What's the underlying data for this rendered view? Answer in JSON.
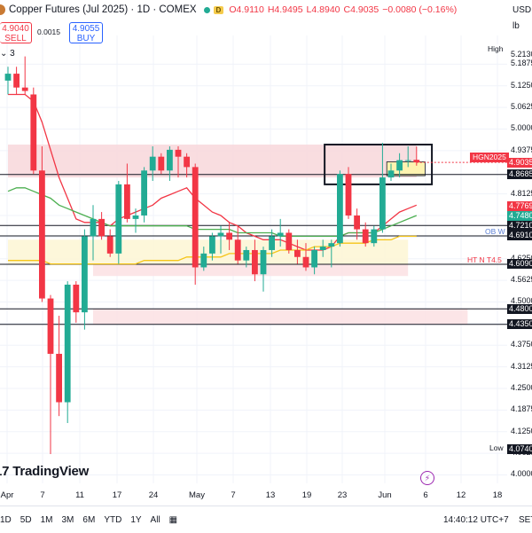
{
  "header": {
    "title": "Copper Futures (Jul 2025) · 1D · COMEX",
    "badge": "D",
    "open": "O4.9110",
    "high": "H4.9495",
    "low": "L4.8940",
    "close": "C4.9035",
    "change": "−0.0080 (−0.16%)"
  },
  "trade": {
    "sell_price": "4.9040",
    "sell_label": "SELL",
    "spread": "0.0015",
    "buy_price": "4.9055",
    "buy_label": "BUY"
  },
  "indicator_toggle": "3",
  "price_axis": {
    "currency": "USD",
    "unit": "lb",
    "ticks": [
      "5.2130",
      "5.1875",
      "5.1250",
      "5.0625",
      "5.0000",
      "4.9375",
      "4.8125",
      "4.7500",
      "4.6875",
      "4.6250",
      "4.5625",
      "4.5000",
      "4.4375",
      "4.3750",
      "4.3125",
      "4.2500",
      "4.1875",
      "4.1250",
      "4.0625",
      "4.0000"
    ],
    "tags": [
      {
        "text": "4.9035",
        "value": 4.9035,
        "color": "#f23645"
      },
      {
        "text": "4.8685",
        "value": 4.8685,
        "color": "#131722"
      },
      {
        "text": "4.7769",
        "value": 4.7769,
        "color": "#f23645"
      },
      {
        "text": "4.7480",
        "value": 4.748,
        "color": "#22ab94"
      },
      {
        "text": "4.7210",
        "value": 4.721,
        "color": "#131722"
      },
      {
        "text": "4.6910",
        "value": 4.691,
        "color": "#131722"
      },
      {
        "text": "4.6090",
        "value": 4.609,
        "color": "#131722"
      },
      {
        "text": "4.4800",
        "value": 4.48,
        "color": "#131722"
      },
      {
        "text": "4.4350",
        "value": 4.435,
        "color": "#131722"
      },
      {
        "text": "4.0740",
        "value": 4.074,
        "color": "#131722"
      }
    ],
    "high_label": "High",
    "low_label": "Low"
  },
  "annotations": {
    "symbol_tag": "HGN2025",
    "ob_label": "OB W",
    "ht_label": "HT N T4.5"
  },
  "x_axis": [
    "Apr",
    "7",
    "11",
    "17",
    "24",
    "May",
    "7",
    "13",
    "19",
    "23",
    "Jun",
    "6",
    "12",
    "18"
  ],
  "brand": "TradingView",
  "bottom_bar": {
    "ranges": [
      "1D",
      "5D",
      "1M",
      "3M",
      "6M",
      "YTD",
      "1Y",
      "All"
    ],
    "time": "14:40:12 UTC+7",
    "settings_label": "SET"
  },
  "chart_data": {
    "type": "candlestick",
    "ylim": [
      3.996,
      5.25
    ],
    "candles": [
      {
        "o": 5.14,
        "h": 5.18,
        "l": 5.1,
        "c": 5.16
      },
      {
        "o": 5.16,
        "h": 5.18,
        "l": 5.1,
        "c": 5.12
      },
      {
        "o": 5.12,
        "h": 5.21,
        "l": 5.1,
        "c": 5.11
      },
      {
        "o": 5.1,
        "h": 5.12,
        "l": 4.87,
        "c": 4.88
      },
      {
        "o": 4.88,
        "h": 4.95,
        "l": 4.5,
        "c": 4.51
      },
      {
        "o": 4.51,
        "h": 4.52,
        "l": 4.06,
        "c": 4.35
      },
      {
        "o": 4.35,
        "h": 4.46,
        "l": 4.17,
        "c": 4.21
      },
      {
        "o": 4.21,
        "h": 4.56,
        "l": 4.15,
        "c": 4.55
      },
      {
        "o": 4.55,
        "h": 4.56,
        "l": 4.44,
        "c": 4.47
      },
      {
        "o": 4.47,
        "h": 4.71,
        "l": 4.42,
        "c": 4.69
      },
      {
        "o": 4.69,
        "h": 4.78,
        "l": 4.62,
        "c": 4.74
      },
      {
        "o": 4.74,
        "h": 4.76,
        "l": 4.68,
        "c": 4.69
      },
      {
        "o": 4.69,
        "h": 4.71,
        "l": 4.63,
        "c": 4.64
      },
      {
        "o": 4.64,
        "h": 4.85,
        "l": 4.61,
        "c": 4.84
      },
      {
        "o": 4.84,
        "h": 4.9,
        "l": 4.73,
        "c": 4.74
      },
      {
        "o": 4.74,
        "h": 4.77,
        "l": 4.7,
        "c": 4.75
      },
      {
        "o": 4.75,
        "h": 4.89,
        "l": 4.73,
        "c": 4.88
      },
      {
        "o": 4.88,
        "h": 4.95,
        "l": 4.85,
        "c": 4.92
      },
      {
        "o": 4.92,
        "h": 4.93,
        "l": 4.87,
        "c": 4.88
      },
      {
        "o": 4.88,
        "h": 4.95,
        "l": 4.85,
        "c": 4.94
      },
      {
        "o": 4.94,
        "h": 4.95,
        "l": 4.86,
        "c": 4.92
      },
      {
        "o": 4.92,
        "h": 4.93,
        "l": 4.86,
        "c": 4.89
      },
      {
        "o": 4.89,
        "h": 4.9,
        "l": 4.55,
        "c": 4.6
      },
      {
        "o": 4.6,
        "h": 4.66,
        "l": 4.59,
        "c": 4.64
      },
      {
        "o": 4.64,
        "h": 4.7,
        "l": 4.62,
        "c": 4.69
      },
      {
        "o": 4.69,
        "h": 4.72,
        "l": 4.64,
        "c": 4.7
      },
      {
        "o": 4.7,
        "h": 4.73,
        "l": 4.65,
        "c": 4.68
      },
      {
        "o": 4.68,
        "h": 4.72,
        "l": 4.61,
        "c": 4.62
      },
      {
        "o": 4.62,
        "h": 4.66,
        "l": 4.6,
        "c": 4.65
      },
      {
        "o": 4.65,
        "h": 4.68,
        "l": 4.56,
        "c": 4.58
      },
      {
        "o": 4.58,
        "h": 4.66,
        "l": 4.53,
        "c": 4.65
      },
      {
        "o": 4.65,
        "h": 4.71,
        "l": 4.63,
        "c": 4.69
      },
      {
        "o": 4.69,
        "h": 4.74,
        "l": 4.66,
        "c": 4.7
      },
      {
        "o": 4.7,
        "h": 4.71,
        "l": 4.64,
        "c": 4.65
      },
      {
        "o": 4.65,
        "h": 4.68,
        "l": 4.61,
        "c": 4.63
      },
      {
        "o": 4.63,
        "h": 4.67,
        "l": 4.59,
        "c": 4.6
      },
      {
        "o": 4.6,
        "h": 4.66,
        "l": 4.58,
        "c": 4.65
      },
      {
        "o": 4.65,
        "h": 4.68,
        "l": 4.63,
        "c": 4.66
      },
      {
        "o": 4.66,
        "h": 4.68,
        "l": 4.6,
        "c": 4.67
      },
      {
        "o": 4.67,
        "h": 4.88,
        "l": 4.66,
        "c": 4.87
      },
      {
        "o": 4.87,
        "h": 4.89,
        "l": 4.74,
        "c": 4.75
      },
      {
        "o": 4.75,
        "h": 4.77,
        "l": 4.68,
        "c": 4.71
      },
      {
        "o": 4.71,
        "h": 4.73,
        "l": 4.66,
        "c": 4.67
      },
      {
        "o": 4.67,
        "h": 4.72,
        "l": 4.66,
        "c": 4.71
      },
      {
        "o": 4.71,
        "h": 4.96,
        "l": 4.7,
        "c": 4.86
      },
      {
        "o": 4.86,
        "h": 4.9,
        "l": 4.85,
        "c": 4.88
      },
      {
        "o": 4.88,
        "h": 4.93,
        "l": 4.86,
        "c": 4.91
      },
      {
        "o": 4.91,
        "h": 4.95,
        "l": 4.89,
        "c": 4.91
      },
      {
        "o": 4.911,
        "h": 4.9495,
        "l": 4.894,
        "c": 4.9035
      }
    ],
    "series": [
      {
        "name": "",
        "color": "#f23645",
        "values": [
          5.1,
          5.1,
          5.1,
          5.08,
          5.02,
          4.94,
          4.86,
          4.8,
          4.74,
          4.73,
          4.73,
          4.73,
          4.72,
          4.74,
          4.75,
          4.76,
          4.77,
          4.78,
          4.8,
          4.81,
          4.82,
          4.83,
          4.8,
          4.78,
          4.76,
          4.75,
          4.73,
          4.72,
          4.7,
          4.69,
          4.68,
          4.68,
          4.68,
          4.67,
          4.66,
          4.65,
          4.65,
          4.65,
          4.66,
          4.69,
          4.7,
          4.7,
          4.7,
          4.7,
          4.72,
          4.74,
          4.76,
          4.77,
          4.78
        ]
      },
      {
        "name": "",
        "color": "#4caf50",
        "values": [
          4.82,
          4.83,
          4.83,
          4.82,
          4.81,
          4.8,
          4.78,
          4.77,
          4.76,
          4.75,
          4.74,
          4.73,
          4.72,
          4.72,
          4.72,
          4.72,
          4.72,
          4.72,
          4.72,
          4.72,
          4.72,
          4.72,
          4.71,
          4.71,
          4.71,
          4.71,
          4.71,
          4.7,
          4.7,
          4.7,
          4.7,
          4.7,
          4.69,
          4.69,
          4.69,
          4.69,
          4.69,
          4.69,
          4.69,
          4.69,
          4.7,
          4.7,
          4.7,
          4.7,
          4.71,
          4.72,
          4.73,
          4.74,
          4.75
        ]
      },
      {
        "name": "",
        "color": "#f5c518",
        "values": [
          4.62,
          4.62,
          4.62,
          4.62,
          4.62,
          4.61,
          4.61,
          4.61,
          4.61,
          4.61,
          4.61,
          4.61,
          4.61,
          4.61,
          4.61,
          4.61,
          4.62,
          4.62,
          4.62,
          4.62,
          4.62,
          4.63,
          4.63,
          4.63,
          4.63,
          4.63,
          4.64,
          4.64,
          4.64,
          4.64,
          4.64,
          4.64,
          4.65,
          4.65,
          4.65,
          4.65,
          4.66,
          4.66,
          4.66,
          4.67,
          4.67,
          4.67,
          4.67,
          4.68,
          4.68,
          4.68,
          4.69,
          4.69,
          4.69
        ]
      }
    ],
    "horizontal_lines": [
      4.8685,
      4.721,
      4.691,
      4.609,
      4.48,
      4.435
    ],
    "zones": [
      {
        "y1": 4.86,
        "y2": 4.955,
        "from": 0,
        "to": 48,
        "color": "#f8d7da"
      },
      {
        "y1": 4.68,
        "y2": 4.61,
        "from": 0,
        "to": 47,
        "color": "#fdf6d3"
      },
      {
        "y1": 4.61,
        "y2": 4.575,
        "from": 10,
        "to": 47,
        "color": "#fbe0e3"
      },
      {
        "y1": 4.48,
        "y2": 4.435,
        "from": 10,
        "to": 54,
        "color": "#fbe0e3"
      }
    ],
    "grid": true
  }
}
